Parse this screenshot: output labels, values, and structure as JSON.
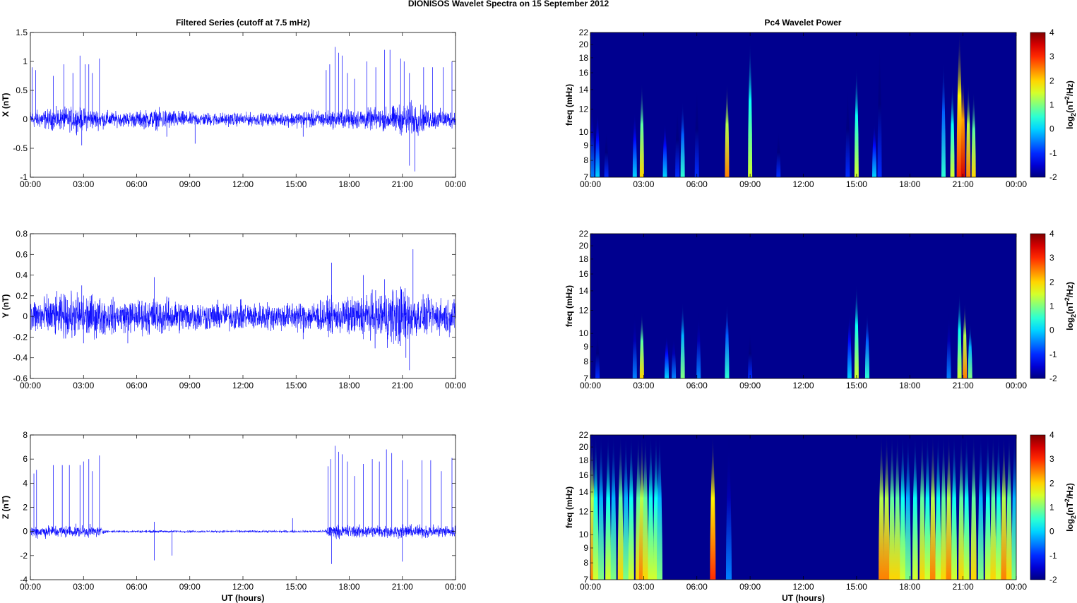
{
  "title": "DIONISOS Wavelet Spectra on 15 September 2012",
  "left_title": "Filtered Series (cutoff at 7.5 mHz)",
  "right_title": "Pc4 Wavelet Power",
  "xlabel": "UT (hours)",
  "freq_label": "freq (mHz)",
  "colorbar_label": "log2(nT2/Hz)",
  "colors": {
    "line": "#0000ff",
    "background": "#00008f"
  },
  "chart_data": [
    {
      "type": "line",
      "name": "X",
      "ylabel": "X (nT)",
      "xlim": [
        0,
        24
      ],
      "ylim": [
        -1,
        1.5
      ],
      "yticks": [
        -1,
        -0.5,
        0,
        0.5,
        1,
        1.5
      ],
      "yticklabels": [
        "-1",
        "-0.5",
        "0",
        "0.5",
        "1",
        "1.5"
      ],
      "xticks": [
        0,
        3,
        6,
        9,
        12,
        15,
        18,
        21,
        24
      ],
      "xticklabels": [
        "00:00",
        "03:00",
        "06:00",
        "09:00",
        "12:00",
        "15:00",
        "18:00",
        "21:00",
        "00:00"
      ],
      "noise_envelope": [
        [
          0,
          0.1
        ],
        [
          2.5,
          0.14
        ],
        [
          3.5,
          0.12
        ],
        [
          5,
          0.08
        ],
        [
          7.5,
          0.12
        ],
        [
          9,
          0.08
        ],
        [
          14,
          0.07
        ],
        [
          15.5,
          0.1
        ],
        [
          17,
          0.1
        ],
        [
          20,
          0.13
        ],
        [
          21.5,
          0.2
        ],
        [
          22.5,
          0.12
        ],
        [
          24,
          0.1
        ]
      ],
      "spikes": [
        [
          0.1,
          0.9
        ],
        [
          0.3,
          0.85
        ],
        [
          1.3,
          0.75
        ],
        [
          1.9,
          0.95
        ],
        [
          2.4,
          0.8
        ],
        [
          2.8,
          1.1
        ],
        [
          3.1,
          0.95
        ],
        [
          3.3,
          0.95
        ],
        [
          3.5,
          0.8
        ],
        [
          3.9,
          1.05
        ],
        [
          16.7,
          0.85
        ],
        [
          16.9,
          0.95
        ],
        [
          17.2,
          1.25
        ],
        [
          17.4,
          1.15
        ],
        [
          17.6,
          1.1
        ],
        [
          17.9,
          0.8
        ],
        [
          18.3,
          0.7
        ],
        [
          19,
          1.0
        ],
        [
          19.5,
          0.9
        ],
        [
          20,
          1.2
        ],
        [
          20.3,
          1.2
        ],
        [
          20.9,
          1.05
        ],
        [
          21.1,
          1.0
        ],
        [
          21.4,
          0.8
        ],
        [
          22.2,
          0.9
        ],
        [
          22.7,
          0.9
        ],
        [
          23.3,
          0.9
        ],
        [
          23.8,
          1.0
        ],
        [
          2.9,
          -0.45
        ],
        [
          7.7,
          -0.3
        ],
        [
          9.3,
          -0.42
        ],
        [
          15.4,
          -0.3
        ],
        [
          21.4,
          -0.8
        ],
        [
          21.7,
          -0.9
        ]
      ]
    },
    {
      "type": "line",
      "name": "Y",
      "ylabel": "Y (nT)",
      "xlim": [
        0,
        24
      ],
      "ylim": [
        -0.6,
        0.8
      ],
      "yticks": [
        -0.6,
        -0.4,
        -0.2,
        0,
        0.2,
        0.4,
        0.6,
        0.8
      ],
      "yticklabels": [
        "-0.6",
        "-0.4",
        "-0.2",
        "0",
        "0.2",
        "0.4",
        "0.6",
        "0.8"
      ],
      "xticks": [
        0,
        3,
        6,
        9,
        12,
        15,
        18,
        21,
        24
      ],
      "xticklabels": [
        "00:00",
        "03:00",
        "06:00",
        "09:00",
        "12:00",
        "15:00",
        "18:00",
        "21:00",
        "00:00"
      ],
      "noise_envelope": [
        [
          0,
          0.12
        ],
        [
          3,
          0.15
        ],
        [
          5,
          0.1
        ],
        [
          7,
          0.12
        ],
        [
          10,
          0.09
        ],
        [
          14,
          0.09
        ],
        [
          16,
          0.1
        ],
        [
          18,
          0.12
        ],
        [
          21,
          0.2
        ],
        [
          22,
          0.12
        ],
        [
          24,
          0.11
        ]
      ],
      "spikes": [
        [
          2.9,
          0.3
        ],
        [
          7.0,
          0.38
        ],
        [
          17.0,
          0.52
        ],
        [
          18.8,
          0.4
        ],
        [
          20.0,
          0.36
        ],
        [
          21.6,
          0.65
        ],
        [
          21.4,
          -0.52
        ],
        [
          21.2,
          -0.4
        ],
        [
          3.0,
          -0.26
        ],
        [
          5.5,
          -0.26
        ],
        [
          15.4,
          -0.22
        ]
      ]
    },
    {
      "type": "line",
      "name": "Z",
      "ylabel": "Z (nT)",
      "xlim": [
        0,
        24
      ],
      "ylim": [
        -4,
        8
      ],
      "yticks": [
        -4,
        -2,
        0,
        2,
        4,
        6,
        8
      ],
      "yticklabels": [
        "-4",
        "-2",
        "0",
        "2",
        "4",
        "6",
        "8"
      ],
      "xticks": [
        0,
        3,
        6,
        9,
        12,
        15,
        18,
        21,
        24
      ],
      "xticklabels": [
        "00:00",
        "03:00",
        "06:00",
        "09:00",
        "12:00",
        "15:00",
        "18:00",
        "21:00",
        "00:00"
      ],
      "xlabel": "UT (hours)",
      "noise_envelope": [
        [
          0,
          0.35
        ],
        [
          4,
          0.3
        ],
        [
          4.2,
          0.07
        ],
        [
          16.6,
          0.07
        ],
        [
          16.8,
          0.35
        ],
        [
          24,
          0.35
        ]
      ],
      "spikes": [
        [
          0.2,
          4.8
        ],
        [
          0.35,
          5.1
        ],
        [
          1.3,
          5.5
        ],
        [
          1.8,
          5.5
        ],
        [
          2.2,
          5.5
        ],
        [
          2.8,
          5.5
        ],
        [
          3.0,
          5.8
        ],
        [
          3.3,
          6.0
        ],
        [
          3.5,
          5.0
        ],
        [
          3.9,
          6.3
        ],
        [
          7.0,
          0.8
        ],
        [
          7.0,
          -2.4
        ],
        [
          8.0,
          -2.0
        ],
        [
          14.8,
          1.1
        ],
        [
          16.8,
          5.4
        ],
        [
          16.95,
          6.0
        ],
        [
          17.2,
          7.1
        ],
        [
          17.4,
          6.6
        ],
        [
          17.6,
          6.4
        ],
        [
          17.9,
          5.8
        ],
        [
          18.3,
          4.6
        ],
        [
          18.8,
          5.6
        ],
        [
          19.3,
          6.0
        ],
        [
          19.7,
          5.8
        ],
        [
          20.1,
          6.8
        ],
        [
          20.4,
          6.5
        ],
        [
          21.0,
          5.9
        ],
        [
          21.3,
          4.3
        ],
        [
          22.1,
          5.9
        ],
        [
          22.6,
          5.9
        ],
        [
          23.2,
          5.0
        ],
        [
          23.8,
          6.1
        ],
        [
          17.0,
          -2.7
        ],
        [
          21.0,
          -2.5
        ]
      ]
    },
    {
      "type": "heatmap",
      "name": "X wavelet",
      "ylabel": "freq (mHz)",
      "yscale": "log",
      "ylim": [
        7,
        22
      ],
      "clim": [
        -2,
        4
      ],
      "yticks": [
        7,
        8,
        9,
        10,
        12,
        14,
        16,
        18,
        20,
        22
      ],
      "events": [
        [
          0.1,
          13,
          -0.5
        ],
        [
          0.4,
          12,
          0
        ],
        [
          0.9,
          10,
          -1
        ],
        [
          2.5,
          12,
          0
        ],
        [
          2.9,
          15,
          2
        ],
        [
          4.2,
          11,
          0
        ],
        [
          4.9,
          12,
          -1
        ],
        [
          5.2,
          13,
          0.5
        ],
        [
          6.0,
          14,
          -1
        ],
        [
          7.7,
          15,
          2.5
        ],
        [
          9.0,
          21,
          1.5
        ],
        [
          10.6,
          10,
          -1
        ],
        [
          14.5,
          14,
          -1
        ],
        [
          15.0,
          17,
          1.5
        ],
        [
          16.0,
          11,
          0
        ],
        [
          16.3,
          20,
          -1
        ],
        [
          19.9,
          18,
          0.5
        ],
        [
          20.4,
          15,
          1.5
        ],
        [
          20.8,
          22,
          3
        ],
        [
          21.0,
          16,
          3.5
        ],
        [
          21.3,
          15,
          2.5
        ],
        [
          21.6,
          14,
          2
        ]
      ],
      "xticklabels": [
        "00:00",
        "03:00",
        "06:00",
        "09:00",
        "12:00",
        "15:00",
        "18:00",
        "21:00",
        "00:00"
      ]
    },
    {
      "type": "heatmap",
      "name": "Y wavelet",
      "ylabel": "freq (mHz)",
      "yscale": "log",
      "ylim": [
        7,
        22
      ],
      "clim": [
        -2,
        4
      ],
      "yticks": [
        7,
        8,
        9,
        10,
        12,
        14,
        16,
        18,
        20,
        22
      ],
      "events": [
        [
          0.4,
          10,
          -1
        ],
        [
          2.5,
          12,
          -0.5
        ],
        [
          2.9,
          12,
          2
        ],
        [
          4.3,
          10,
          0
        ],
        [
          4.7,
          10,
          -0.5
        ],
        [
          5.2,
          13,
          1
        ],
        [
          6.1,
          12,
          -0.5
        ],
        [
          7.7,
          13,
          0.5
        ],
        [
          9.0,
          10,
          -1
        ],
        [
          14.6,
          12,
          0
        ],
        [
          15.0,
          15,
          1.5
        ],
        [
          15.6,
          12,
          0.5
        ],
        [
          20.2,
          12,
          -0.5
        ],
        [
          20.8,
          14,
          1.5
        ],
        [
          21.1,
          13,
          2.5
        ],
        [
          21.4,
          11,
          1
        ]
      ],
      "xticklabels": [
        "00:00",
        "03:00",
        "06:00",
        "09:00",
        "12:00",
        "15:00",
        "18:00",
        "21:00",
        "00:00"
      ]
    },
    {
      "type": "heatmap",
      "name": "Z wavelet",
      "ylabel": "freq (mHz)",
      "yscale": "log",
      "ylim": [
        7,
        22
      ],
      "clim": [
        -2,
        4
      ],
      "yticks": [
        7,
        8,
        9,
        10,
        12,
        14,
        16,
        18,
        20,
        22
      ],
      "events": [
        [
          0.1,
          22,
          2.5
        ],
        [
          0.3,
          22,
          1.5
        ],
        [
          0.6,
          22,
          1
        ],
        [
          1.0,
          22,
          1.5
        ],
        [
          1.3,
          22,
          1
        ],
        [
          1.7,
          22,
          2
        ],
        [
          2.0,
          22,
          1
        ],
        [
          2.3,
          22,
          1.5
        ],
        [
          2.7,
          22,
          2
        ],
        [
          2.9,
          22,
          2.5
        ],
        [
          3.1,
          22,
          2
        ],
        [
          3.4,
          22,
          1.5
        ],
        [
          3.7,
          22,
          1.5
        ],
        [
          3.9,
          22,
          1
        ],
        [
          6.9,
          22,
          3
        ],
        [
          7.8,
          22,
          -0.5
        ],
        [
          16.4,
          22,
          2.5
        ],
        [
          16.7,
          22,
          2.5
        ],
        [
          17.0,
          22,
          2
        ],
        [
          17.3,
          22,
          2
        ],
        [
          17.6,
          22,
          1.5
        ],
        [
          17.9,
          22,
          1
        ],
        [
          18.3,
          22,
          1.5
        ],
        [
          18.7,
          22,
          2
        ],
        [
          19.0,
          22,
          1.5
        ],
        [
          19.3,
          22,
          2.5
        ],
        [
          19.6,
          22,
          1.5
        ],
        [
          19.9,
          22,
          2
        ],
        [
          20.2,
          22,
          2.5
        ],
        [
          20.5,
          22,
          1.5
        ],
        [
          20.9,
          22,
          2
        ],
        [
          21.2,
          22,
          1.5
        ],
        [
          21.6,
          22,
          2
        ],
        [
          22.0,
          22,
          1
        ],
        [
          22.4,
          22,
          1.5
        ],
        [
          22.7,
          22,
          2
        ],
        [
          23.0,
          22,
          1.5
        ],
        [
          23.3,
          22,
          2.5
        ],
        [
          23.6,
          22,
          2
        ],
        [
          23.9,
          22,
          1
        ]
      ],
      "xlabel": "UT (hours)",
      "xticklabels": [
        "00:00",
        "03:00",
        "06:00",
        "09:00",
        "12:00",
        "15:00",
        "18:00",
        "21:00",
        "00:00"
      ]
    }
  ],
  "colorbar": {
    "ticks": [
      -2,
      -1,
      0,
      1,
      2,
      3,
      4
    ],
    "ticklabels": [
      "-2",
      "-1",
      "0",
      "1",
      "2",
      "3",
      "4"
    ]
  }
}
